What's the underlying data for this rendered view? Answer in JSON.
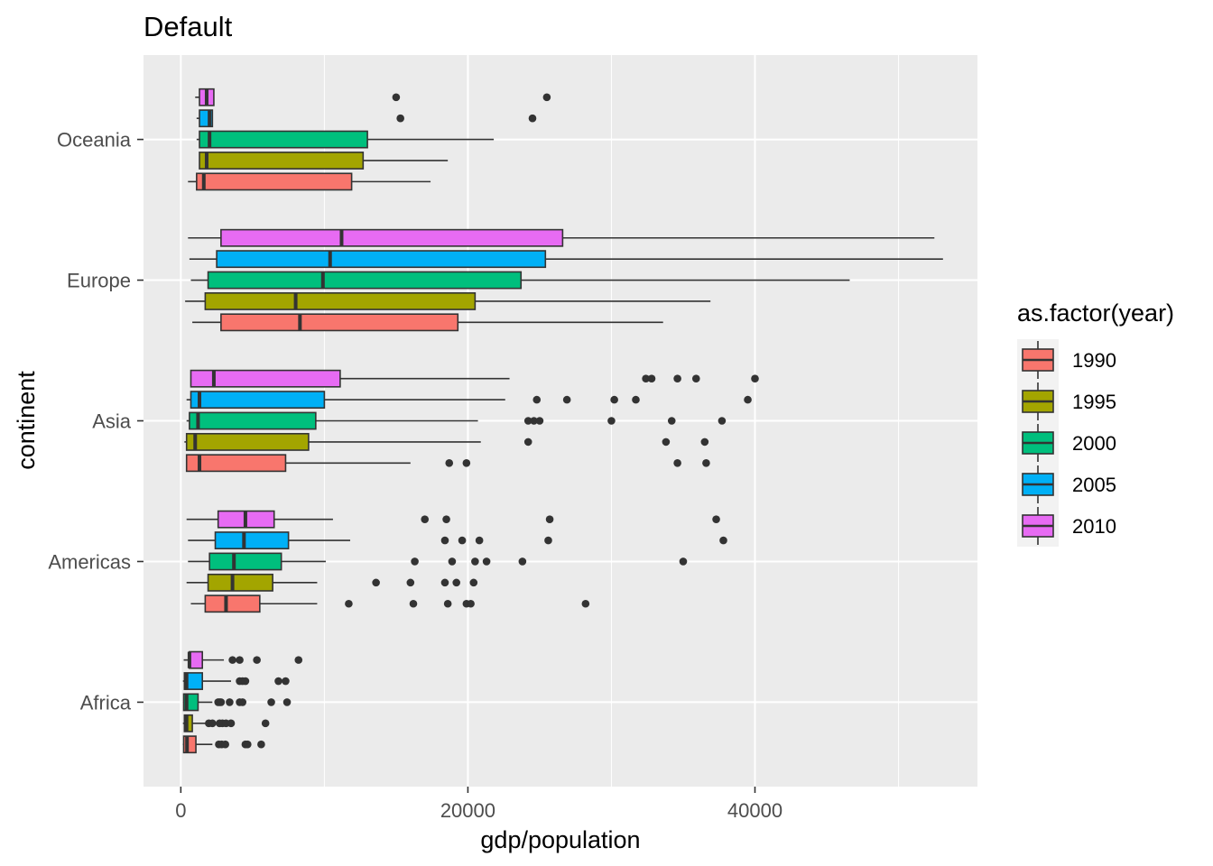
{
  "chart_data": {
    "type": "boxplot",
    "orientation": "horizontal",
    "title": "Default",
    "xlabel": "gdp/population",
    "ylabel": "continent",
    "xlim": [
      -2600,
      55500
    ],
    "x_ticks": [
      0,
      20000,
      40000
    ],
    "x_tick_labels": [
      "0",
      "20000",
      "40000"
    ],
    "x_minor_ticks": [
      10000,
      30000,
      50000
    ],
    "categories": [
      "Africa",
      "Americas",
      "Asia",
      "Europe",
      "Oceania"
    ],
    "legend": {
      "title": "as.factor(year)",
      "position": "right",
      "entries": [
        {
          "label": "1990",
          "color": "#F8766D"
        },
        {
          "label": "1995",
          "color": "#A3A500"
        },
        {
          "label": "2000",
          "color": "#00BF7D"
        },
        {
          "label": "2005",
          "color": "#00B0F6"
        },
        {
          "label": "2010",
          "color": "#E76BF3"
        }
      ]
    },
    "series": [
      {
        "name": "1990",
        "color": "#F8766D",
        "boxes": {
          "Africa": {
            "min": 150,
            "q1": 200,
            "median": 430,
            "q3": 1050,
            "max": 2200,
            "outliers": [
              2650,
              2850,
              3100,
              4500,
              4650,
              5600
            ]
          },
          "Americas": {
            "min": 700,
            "q1": 1700,
            "median": 3150,
            "q3": 5500,
            "max": 9500,
            "outliers": [
              11700,
              16200,
              18600,
              19900,
              20200,
              28200
            ]
          },
          "Asia": {
            "min": 400,
            "q1": 400,
            "median": 1300,
            "q3": 7300,
            "max": 16000,
            "outliers": [
              18700,
              19900,
              34600,
              36600
            ]
          },
          "Europe": {
            "min": 800,
            "q1": 2800,
            "median": 8300,
            "q3": 19300,
            "max": 33600,
            "outliers": []
          },
          "Oceania": {
            "min": 500,
            "q1": 1100,
            "median": 1600,
            "q3": 11900,
            "max": 17400,
            "outliers": []
          }
        }
      },
      {
        "name": "1995",
        "color": "#A3A500",
        "boxes": {
          "Africa": {
            "min": 150,
            "q1": 250,
            "median": 400,
            "q3": 800,
            "max": 1800,
            "outliers": [
              1950,
              2200,
              2700,
              2900,
              3150,
              3500,
              5900
            ]
          },
          "Americas": {
            "min": 400,
            "q1": 1900,
            "median": 3600,
            "q3": 6400,
            "max": 9500,
            "outliers": [
              13600,
              16000,
              18400,
              19200,
              20400
            ]
          },
          "Asia": {
            "min": 250,
            "q1": 400,
            "median": 1000,
            "q3": 8900,
            "max": 20900,
            "outliers": [
              24200,
              33800,
              36500
            ]
          },
          "Europe": {
            "min": 300,
            "q1": 1700,
            "median": 8000,
            "q3": 20500,
            "max": 36900,
            "outliers": []
          },
          "Oceania": {
            "min": 1300,
            "q1": 1300,
            "median": 1800,
            "q3": 12700,
            "max": 18600,
            "outliers": []
          }
        }
      },
      {
        "name": "2000",
        "color": "#00BF7D",
        "boxes": {
          "Africa": {
            "min": 150,
            "q1": 200,
            "median": 400,
            "q3": 1200,
            "max": 2200,
            "outliers": [
              2600,
              2700,
              2800,
              3400,
              4100,
              4300,
              6300,
              7400
            ]
          },
          "Americas": {
            "min": 500,
            "q1": 2000,
            "median": 3700,
            "q3": 7000,
            "max": 10100,
            "outliers": [
              16300,
              18900,
              20500,
              21300,
              23800,
              35000
            ]
          },
          "Asia": {
            "min": 400,
            "q1": 600,
            "median": 1200,
            "q3": 9400,
            "max": 20700,
            "outliers": [
              24200,
              24600,
              25000,
              30000,
              34200,
              37700
            ]
          },
          "Europe": {
            "min": 700,
            "q1": 1900,
            "median": 9900,
            "q3": 23700,
            "max": 46600,
            "outliers": []
          },
          "Oceania": {
            "min": 1100,
            "q1": 1300,
            "median": 2000,
            "q3": 13000,
            "max": 21800,
            "outliers": []
          }
        }
      },
      {
        "name": "2005",
        "color": "#00B0F6",
        "boxes": {
          "Africa": {
            "min": 150,
            "q1": 250,
            "median": 400,
            "q3": 1500,
            "max": 3500,
            "outliers": [
              4100,
              4300,
              4500,
              6800,
              7300
            ]
          },
          "Americas": {
            "min": 500,
            "q1": 2400,
            "median": 4400,
            "q3": 7500,
            "max": 11800,
            "outliers": [
              18400,
              19600,
              20800,
              25600,
              37800
            ]
          },
          "Asia": {
            "min": 400,
            "q1": 700,
            "median": 1300,
            "q3": 10000,
            "max": 22600,
            "outliers": [
              24800,
              26900,
              30200,
              31700,
              39500
            ]
          },
          "Europe": {
            "min": 600,
            "q1": 2500,
            "median": 10400,
            "q3": 25400,
            "max": 53100,
            "outliers": []
          },
          "Oceania": {
            "min": 1100,
            "q1": 1300,
            "median": 2000,
            "q3": 2200,
            "max": 2200,
            "outliers": [
              15300,
              24500
            ]
          }
        }
      },
      {
        "name": "2010",
        "color": "#E76BF3",
        "boxes": {
          "Africa": {
            "min": 200,
            "q1": 600,
            "median": 600,
            "q3": 1500,
            "max": 3000,
            "outliers": [
              3600,
              4100,
              5300,
              8200
            ]
          },
          "Americas": {
            "min": 400,
            "q1": 2600,
            "median": 4500,
            "q3": 6500,
            "max": 10600,
            "outliers": [
              17000,
              18500,
              25700,
              37300
            ]
          },
          "Asia": {
            "min": 700,
            "q1": 700,
            "median": 2300,
            "q3": 11100,
            "max": 22900,
            "outliers": [
              32400,
              32800,
              34600,
              35900,
              40000
            ]
          },
          "Europe": {
            "min": 500,
            "q1": 2800,
            "median": 11200,
            "q3": 26600,
            "max": 52500,
            "outliers": []
          },
          "Oceania": {
            "min": 1000,
            "q1": 1300,
            "median": 1800,
            "q3": 2300,
            "max": 2300,
            "outliers": [
              15000,
              25500
            ]
          }
        }
      }
    ]
  }
}
